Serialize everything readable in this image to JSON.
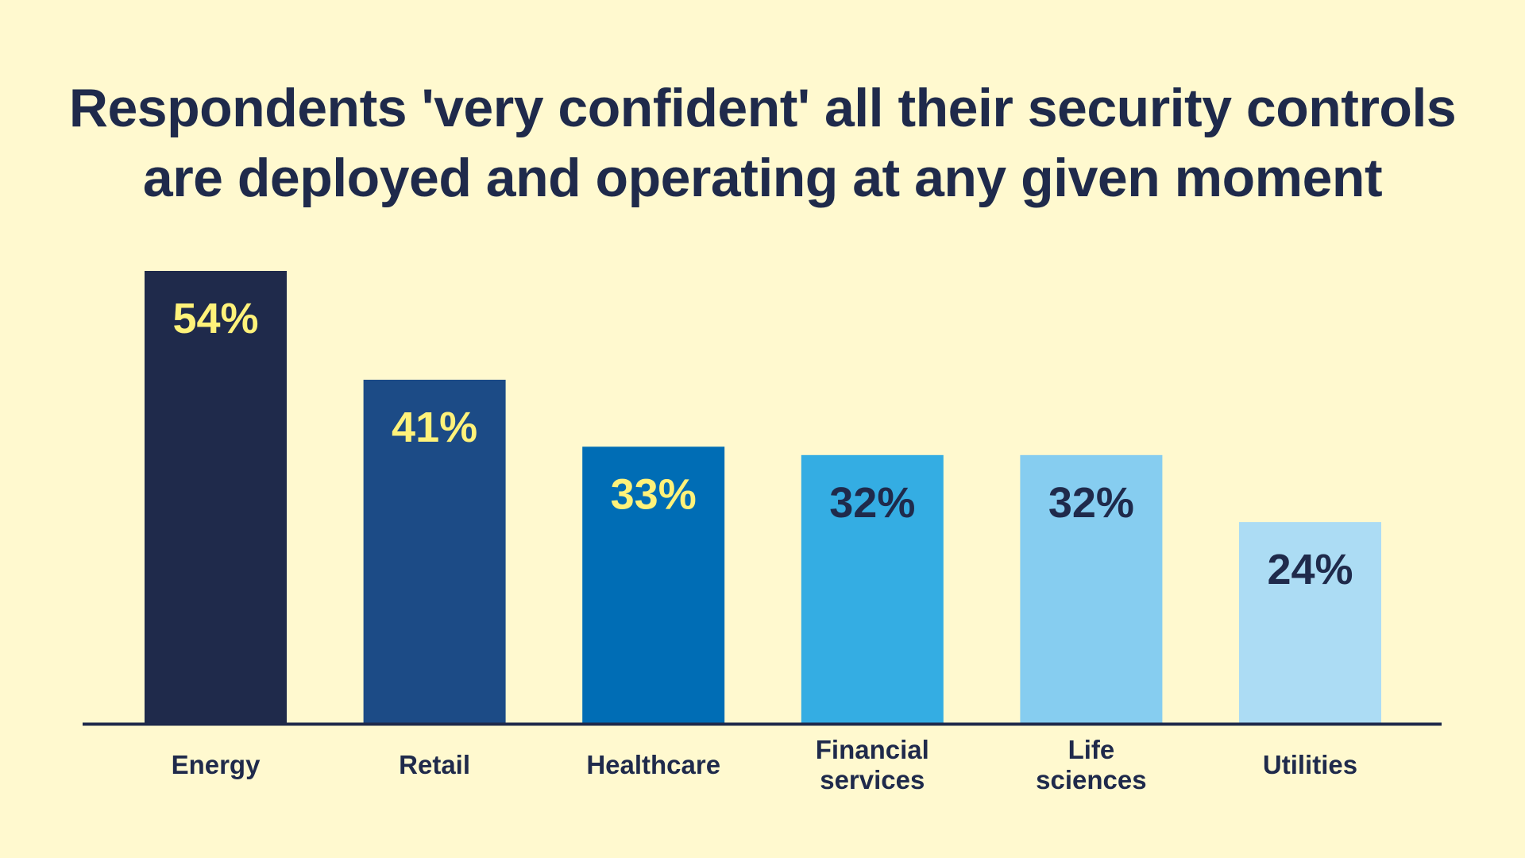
{
  "title_lines": [
    "Respondents 'very confident' all their security controls",
    "are deployed and operating at any given moment"
  ],
  "colors": {
    "background": "#fff9cf",
    "text": "#1f2a4b",
    "baseline": "#1f2a4b"
  },
  "chart_data": {
    "type": "bar",
    "title": "Respondents 'very confident' all their security controls are deployed and operating at any given moment",
    "categories": [
      [
        "Energy"
      ],
      [
        "Retail"
      ],
      [
        "Healthcare"
      ],
      [
        "Financial",
        "services"
      ],
      [
        "Life",
        "sciences"
      ],
      [
        "Utilities"
      ]
    ],
    "values": [
      54,
      41,
      33,
      32,
      32,
      24
    ],
    "value_labels": [
      "54%",
      "41%",
      "33%",
      "32%",
      "32%",
      "24%"
    ],
    "bar_colors": [
      "#1f2a4b",
      "#1c4b86",
      "#006db5",
      "#34ade3",
      "#86cdf0",
      "#acdcf4"
    ],
    "value_label_colors": [
      "#fff27a",
      "#fff27a",
      "#fff27a",
      "#1f2a4b",
      "#1f2a4b",
      "#1f2a4b"
    ],
    "ylim": [
      0,
      54
    ],
    "grid": false,
    "legend": "none"
  }
}
